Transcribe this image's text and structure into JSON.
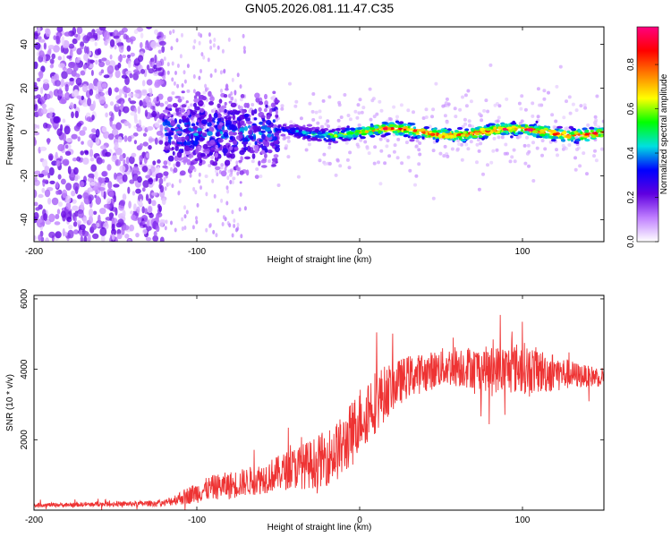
{
  "figure": {
    "title": "GN05.2026.081.11.47.C35"
  },
  "chart_data": [
    {
      "type": "heatmap",
      "title": "GN05.2026.081.11.47.C35",
      "xlabel": "Height of straight line (km)",
      "ylabel": "Frequency (Hz)",
      "xlim": [
        -200,
        150
      ],
      "ylim": [
        -50,
        48
      ],
      "xticks": [
        -200,
        -100,
        0,
        100
      ],
      "yticks": [
        -40,
        -20,
        0,
        20,
        40
      ],
      "colorbar": {
        "label": "Normalized spectral amplitude",
        "range": [
          0,
          0.97
        ],
        "ticks": [
          "0.0",
          "0.2",
          "0.4",
          "0.6",
          "0.8"
        ],
        "colors": [
          "#ffffff",
          "#c080ff",
          "#6000e0",
          "#0000ff",
          "#00e0e0",
          "#00ff00",
          "#ffff00",
          "#ff8000",
          "#ff0000",
          "#ff0080"
        ]
      },
      "regions": [
        {
          "x_range": [
            -200,
            -120
          ],
          "description_freq_range": [
            -50,
            48
          ],
          "typical_amplitude": 0.15
        },
        {
          "x_range": [
            -120,
            -50
          ],
          "description_freq_range": [
            -15,
            18
          ],
          "typical_amplitude": 0.3
        },
        {
          "x_range": [
            -50,
            150
          ],
          "description_freq_range": [
            -4,
            4
          ],
          "typical_amplitude": 0.75
        }
      ]
    },
    {
      "type": "line",
      "xlabel": "Height of straight line (km)",
      "ylabel": "SNR (10 * v/v)",
      "xlim": [
        -200,
        150
      ],
      "ylim": [
        0,
        6100
      ],
      "xticks": [
        -200,
        -100,
        0,
        100
      ],
      "yticks": [
        2000,
        4000,
        6000
      ],
      "series": [
        {
          "name": "SNR",
          "color": "#ee3333",
          "x": [
            -200,
            -180,
            -160,
            -140,
            -120,
            -110,
            -100,
            -90,
            -80,
            -70,
            -60,
            -50,
            -40,
            -30,
            -20,
            -10,
            0,
            5,
            10,
            20,
            30,
            40,
            50,
            60,
            70,
            80,
            90,
            100,
            110,
            120,
            130,
            140,
            150
          ],
          "values": [
            150,
            150,
            170,
            180,
            200,
            350,
            500,
            650,
            700,
            800,
            900,
            1050,
            1200,
            1300,
            1500,
            1800,
            2600,
            2900,
            3100,
            3500,
            3800,
            3900,
            4050,
            4100,
            4050,
            4000,
            4000,
            4050,
            3950,
            3900,
            3850,
            3800,
            3800
          ],
          "spread": [
            60,
            60,
            70,
            70,
            90,
            200,
            300,
            350,
            400,
            400,
            450,
            500,
            600,
            700,
            800,
            900,
            900,
            1000,
            900,
            700,
            600,
            550,
            550,
            600,
            600,
            650,
            700,
            750,
            650,
            550,
            400,
            300,
            300
          ]
        }
      ]
    }
  ]
}
